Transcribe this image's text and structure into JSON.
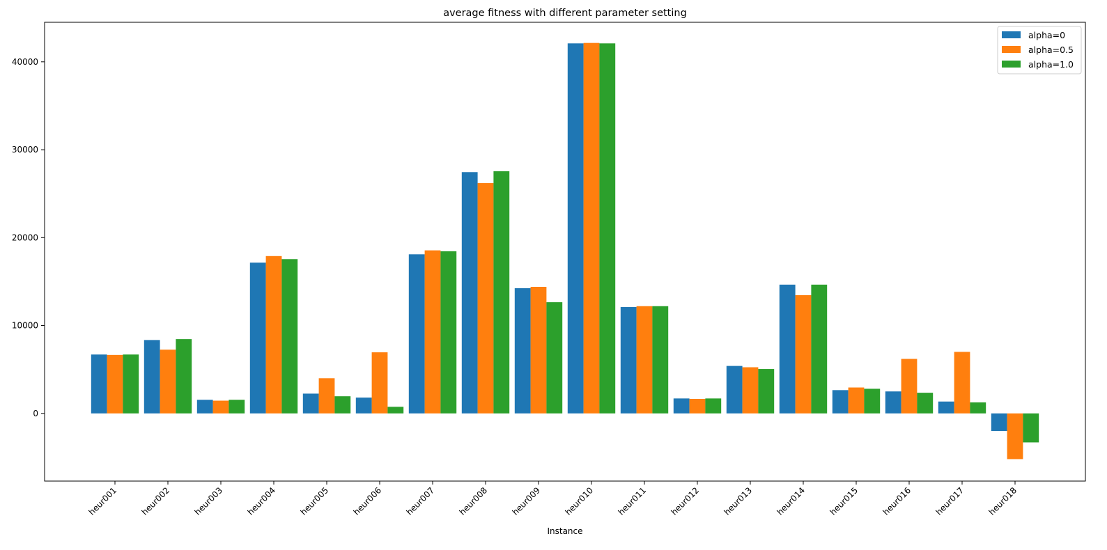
{
  "chart_data": {
    "type": "bar",
    "title": "average fitness with different parameter setting",
    "xlabel": "Instance",
    "ylabel": "",
    "categories": [
      "heur001",
      "heur002",
      "heur003",
      "heur004",
      "heur005",
      "heur006",
      "heur007",
      "heur008",
      "heur009",
      "heur010",
      "heur011",
      "heur012",
      "heur013",
      "heur014",
      "heur015",
      "heur016",
      "heur017",
      "heur018"
    ],
    "series": [
      {
        "name": "alpha=0",
        "color": "#1f77b4",
        "values": [
          6700,
          8350,
          1550,
          17150,
          2250,
          1800,
          18100,
          27450,
          14250,
          42100,
          12100,
          1700,
          5400,
          14650,
          2650,
          2500,
          1350,
          -2000
        ]
      },
      {
        "name": "alpha=0.5",
        "color": "#ff7f0e",
        "values": [
          6650,
          7250,
          1450,
          17900,
          4000,
          6950,
          18550,
          26200,
          14400,
          42150,
          12200,
          1650,
          5250,
          13450,
          2950,
          6200,
          7000,
          -5200
        ]
      },
      {
        "name": "alpha=1.0",
        "color": "#2ca02c",
        "values": [
          6700,
          8450,
          1550,
          17550,
          1950,
          750,
          18450,
          27550,
          12650,
          42100,
          12200,
          1700,
          5050,
          14650,
          2800,
          2350,
          1250,
          -3300
        ]
      }
    ],
    "ylim": [
      -7700,
      44500
    ],
    "yticks": [
      0,
      10000,
      20000,
      30000,
      40000
    ],
    "ytick_labels": [
      "0",
      "10000",
      "20000",
      "30000",
      "40000"
    ],
    "grid": false,
    "legend_position": "top-right"
  }
}
